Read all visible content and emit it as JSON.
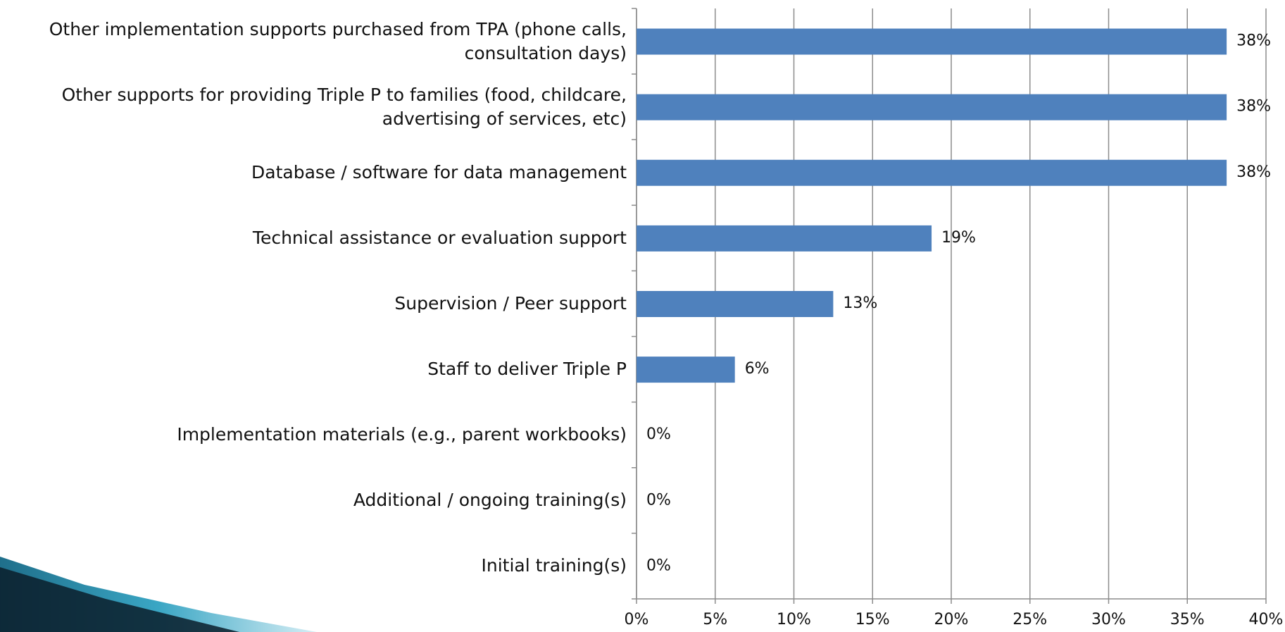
{
  "chart_data": {
    "type": "bar",
    "orientation": "horizontal",
    "categories": [
      "Other implementation supports purchased from TPA (phone calls, consultation days)",
      "Other supports for providing Triple P to families (food, childcare, advertising of services, etc)",
      "Database / software for data management",
      "Technical assistance or evaluation support",
      "Supervision / Peer support",
      "Staff to deliver Triple P",
      "Implementation materials (e.g., parent workbooks)",
      "Additional / ongoing training(s)",
      "Initial training(s)"
    ],
    "values": [
      37.5,
      37.5,
      37.5,
      18.75,
      12.5,
      6.25,
      0,
      0,
      0
    ],
    "value_labels": [
      "38%",
      "38%",
      "38%",
      "19%",
      "13%",
      "6%",
      "0%",
      "0%",
      "0%"
    ],
    "color": "#4f81bd",
    "xlim": [
      0,
      40
    ],
    "xticks": [
      {
        "value": 0,
        "label": "0%"
      },
      {
        "value": 5,
        "label": "5%"
      },
      {
        "value": 10,
        "label": "10%"
      },
      {
        "value": 15,
        "label": "15%"
      },
      {
        "value": 20,
        "label": "20%"
      },
      {
        "value": 25,
        "label": "25%"
      },
      {
        "value": 30,
        "label": "30%"
      },
      {
        "value": 35,
        "label": "35%"
      },
      {
        "value": 40,
        "label": "40%"
      }
    ],
    "grid": true
  }
}
